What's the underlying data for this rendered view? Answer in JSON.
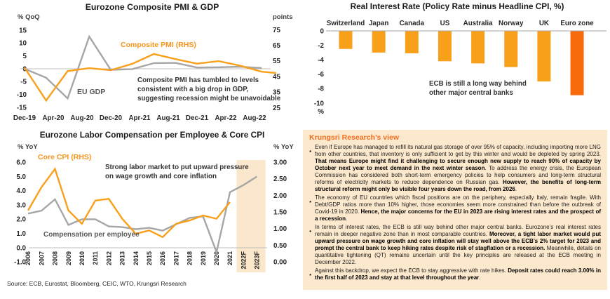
{
  "colors": {
    "orange_line": "#F9A01B",
    "gray_line": "#A6A6A6",
    "bar_default": "#F9A01B",
    "bar_highlight": "#F96A0D",
    "panel_bg": "#FCE8CD",
    "band_bg": "#FBE7CB",
    "label_orange": "#F7941D",
    "label_gray": "#595959",
    "panel_title_orange": "#EE7023"
  },
  "source_note": "Source: ECB, Eurostat, Bloomberg, CEIC, WTO, Krungsri Research",
  "chart_data": [
    {
      "id": "pmi_gdp",
      "type": "line",
      "title": "Eurozone Composite PMI & GDP",
      "left_axis": {
        "label": "% QoQ",
        "ticks": [
          15,
          10,
          5,
          0,
          -5,
          -10,
          -15
        ],
        "range": [
          -15,
          15
        ]
      },
      "right_axis": {
        "label": "points",
        "ticks": [
          75,
          65,
          55,
          45,
          35,
          25
        ],
        "range": [
          25,
          75
        ]
      },
      "x_ticks": [
        "Dec-19",
        "Apr-20",
        "Aug-20",
        "Dec-20",
        "Apr-21",
        "Aug-21",
        "Dec-21",
        "Apr-22",
        "Aug-22"
      ],
      "series": [
        {
          "name": "EU GDP",
          "axis": "left",
          "x": [
            "Dec-19",
            "Mar-20",
            "Jun-20",
            "Sep-20",
            "Dec-20",
            "Mar-21",
            "Jun-21",
            "Sep-21",
            "Dec-21",
            "Mar-22",
            "Jun-22",
            "Sep-22"
          ],
          "values": [
            0.0,
            -3.5,
            -11.5,
            12.5,
            -0.4,
            -0.1,
            2.2,
            2.3,
            0.5,
            0.6,
            0.8,
            0.3
          ]
        },
        {
          "name": "Composite PMI (RHS)",
          "axis": "right",
          "x": [
            "Dec-19",
            "Mar-20",
            "Jun-20",
            "Sep-20",
            "Dec-20",
            "Mar-21",
            "Jun-21",
            "Sep-21",
            "Dec-21",
            "Mar-22",
            "Jun-22",
            "Sep-22",
            "Nov-22"
          ],
          "values": [
            50.7,
            29.7,
            48.5,
            50.4,
            49.1,
            53.2,
            59.5,
            56.2,
            53.3,
            54.9,
            52.0,
            48.1,
            47.3
          ]
        }
      ],
      "annotation_lines": [
        "Composite PMI has tumbled to levels",
        "consistent with a big drop in GDP,",
        "suggesting recession might be unavoidable"
      ]
    },
    {
      "id": "real_rates",
      "type": "bar",
      "title": "Real Interest Rate (Policy Rate minus Headline CPI, %)",
      "categories": [
        "Switzerland",
        "Japan",
        "Canada",
        "US",
        "Australia",
        "Norway",
        "UK",
        "Euro zone"
      ],
      "values": [
        -2.5,
        -3.0,
        -3.1,
        -4.2,
        -4.5,
        -5.0,
        -7.0,
        -8.9
      ],
      "highlight_index": 7,
      "y_ticks": [
        0,
        -2,
        -4,
        -6,
        -8,
        -10
      ],
      "y_unit_label": "%",
      "ylim": [
        -10,
        0
      ],
      "annotation_lines": [
        "ECB is still a long way behind",
        "other major central banks"
      ]
    },
    {
      "id": "labor_cpi",
      "type": "line",
      "title": "Eurozone Labor Compensation per Employee & Core CPI",
      "left_axis": {
        "label": "% YoY",
        "ticks": [
          "6.0",
          "5.0",
          "4.0",
          "3.0",
          "2.0",
          "1.0",
          "0.0",
          "-1.0"
        ],
        "range": [
          -1,
          6
        ]
      },
      "right_axis": {
        "label": "% YoY",
        "ticks": [
          "3.00",
          "2.50",
          "2.00",
          "1.50",
          "1.00",
          "0.50",
          "0.00"
        ],
        "range": [
          0,
          3
        ]
      },
      "x_labels": [
        "2006",
        "2007",
        "2008",
        "2009",
        "2010",
        "2011",
        "2012",
        "2013",
        "2014",
        "2015",
        "2016",
        "2017",
        "2018",
        "2019",
        "2020",
        "2021",
        "2022F",
        "2023F"
      ],
      "series": [
        {
          "name": "Compensation per employee",
          "axis": "left",
          "values": [
            2.4,
            2.6,
            3.4,
            1.6,
            2.0,
            2.0,
            1.5,
            1.45,
            1.3,
            1.4,
            1.2,
            1.65,
            2.1,
            2.2,
            -0.3,
            3.9,
            4.4,
            5.0
          ]
        },
        {
          "name": "Core CPI (RHS)",
          "axis": "right",
          "values": [
            1.55,
            2.25,
            2.8,
            1.55,
            1.15,
            1.85,
            1.9,
            1.3,
            0.85,
            0.95,
            0.75,
            1.15,
            1.25,
            1.4,
            1.3,
            1.8
          ]
        }
      ],
      "highlight_band": [
        "2022F",
        "2023F"
      ],
      "annotation_lines": [
        "Strong labor market to put upward pressure",
        "on wage growth and core inflation"
      ]
    }
  ],
  "research_panel": {
    "title": "Krungsri Research’s view",
    "bullets": [
      [
        {
          "t": "Even if Europe has managed to refill its natural gas storage of over 95% of capacity, including importing more LNG from other countries, that inventory is only sufficient to get by this winter and would be depleted by spring 2023. ",
          "b": false
        },
        {
          "t": "That means Europe might find it challenging to secure enough new supply to reach 90% of capacity by October next year to meet demand in the next winter season",
          "b": true
        },
        {
          "t": ". To address the energy crisis, the European Commission has considered both short-term emergency policies to help consumers and long-term structural reforms of electricity markets to reduce dependence on Russian gas. ",
          "b": false
        },
        {
          "t": "However, the benefits of long-term structural reform might only be visible four years down the road, from 2026",
          "b": true
        },
        {
          "t": ".",
          "b": false
        }
      ],
      [
        {
          "t": "The economy of EU countries which fiscal positions are on the periphery, especially Italy, remain fragile. With Debt/GDP ratios more than 10% higher, those economies seem more constrained than before the outbreak of Covid-19 in 2020. ",
          "b": false
        },
        {
          "t": "Hence, the major concerns for the EU in 2023 are rising interest rates and the prospect of a recession",
          "b": true
        },
        {
          "t": ".",
          "b": false
        }
      ],
      [
        {
          "t": "In terms of interest rates, the ECB is still way behind other major central banks. Eurozone’s real interest rates remain in deeper negative zone than in most comparable countries. ",
          "b": false
        },
        {
          "t": "Moreover, a tight labor market would put upward pressure on wage growth and core inflation will stay well above the ECB’s 2% target for 2023 and prompt the central bank to keep hiking rates despite risk of stagflation or a recession.",
          "b": true
        },
        {
          "t": " Meanwhile, details on quantitative tightening (QT) remains uncertain until the key principles are released at the ECB meeting in December 2022.",
          "b": false
        }
      ],
      [
        {
          "t": "Against this backdrop, we expect the ECB to stay aggressive with rate hikes. ",
          "b": false
        },
        {
          "t": "Deposit rates could reach 3.00% in the first half of 2023 and stay at that level throughout the year",
          "b": true
        },
        {
          "t": ".",
          "b": false
        }
      ]
    ]
  }
}
